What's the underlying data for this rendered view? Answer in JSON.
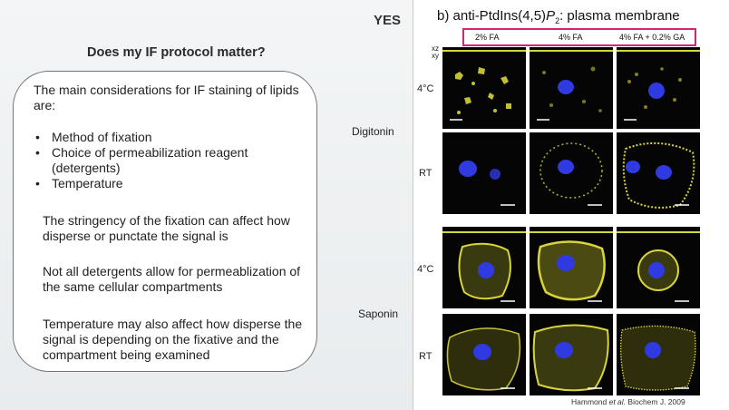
{
  "slide": {
    "title": "Does my IF protocol matter?",
    "yes_label": "YES"
  },
  "bubble": {
    "intro": "The main considerations for IF staining of lipids are:",
    "bullets": [
      "Method of fixation",
      "Choice of permeabilization reagent (detergents)",
      "Temperature"
    ],
    "paragraphs": [
      "The stringency of the fixation can affect how disperse or punctate the signal is",
      "Not all detergents allow for permeablization of the same cellular compartments",
      "Temperature may also affect how disperse the signal is depending on the fixative and the compartment being examined"
    ]
  },
  "figure": {
    "title_prefix": "b) anti-PtdIns(4,5)",
    "title_italic": "P",
    "title_sub": "2",
    "title_suffix": ": plasma membrane",
    "columns": [
      "2% FA",
      "4% FA",
      "4% FA + 0.2% GA"
    ],
    "xz_label": "xz",
    "xy_label": "xy",
    "detergents": [
      "Digitonin",
      "Saponin"
    ],
    "temperatures": [
      "4°C",
      "RT",
      "4°C",
      "RT"
    ],
    "citation_author": "Hammond",
    "citation_etal": "et al.",
    "citation_journal": "Biochem J. 2009",
    "colors": {
      "highlight_box": "#d6246e",
      "membrane_stain": "#d8d43a",
      "nuclear_stain": "#2f3ae0",
      "panel_background": "#050505"
    }
  }
}
